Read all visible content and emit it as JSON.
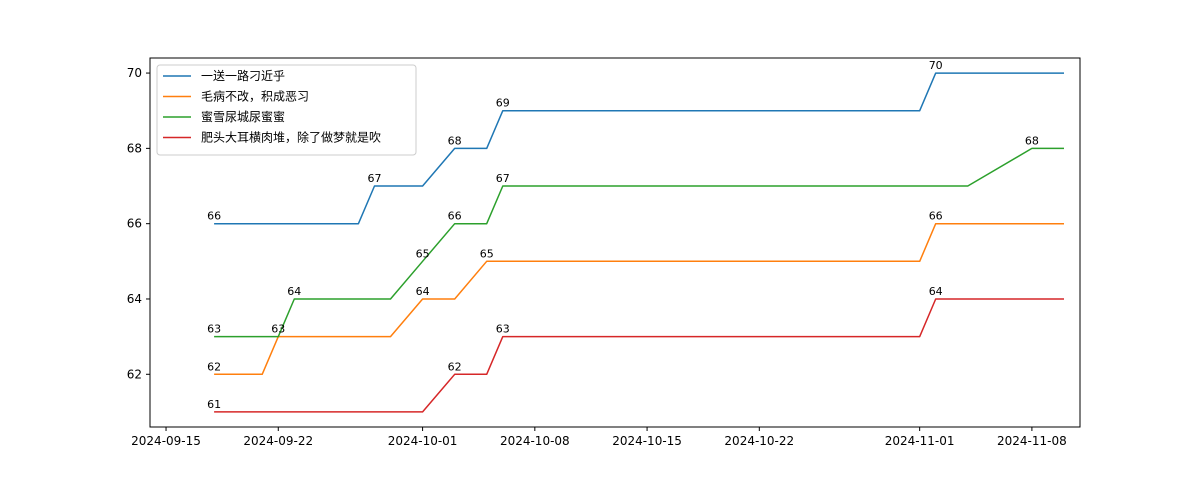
{
  "chart_data": {
    "type": "line",
    "title": "",
    "xlabel": "",
    "ylabel": "",
    "x_type": "date",
    "xlim": [
      "2024-09-14",
      "2024-11-11"
    ],
    "ylim": [
      60.6,
      70.4
    ],
    "x_ticks": [
      "2024-09-15",
      "2024-09-22",
      "2024-10-01",
      "2024-10-08",
      "2024-10-15",
      "2024-10-22",
      "2024-11-01",
      "2024-11-08"
    ],
    "y_ticks": [
      62,
      64,
      66,
      68,
      70
    ],
    "grid": false,
    "legend_position": "top-left",
    "series": [
      {
        "name": "一送一路刁近乎",
        "color": "#1f77b4",
        "x": [
          "2024-09-18",
          "2024-09-27",
          "2024-09-28",
          "2024-10-01",
          "2024-10-03",
          "2024-10-05",
          "2024-10-06",
          "2024-11-01",
          "2024-11-02",
          "2024-11-10"
        ],
        "y": [
          66,
          66,
          67,
          67,
          68,
          68,
          69,
          69,
          70,
          70
        ],
        "labels": [
          {
            "x": "2024-09-18",
            "y": 66,
            "text": "66"
          },
          {
            "x": "2024-09-28",
            "y": 67,
            "text": "67"
          },
          {
            "x": "2024-10-03",
            "y": 68,
            "text": "68"
          },
          {
            "x": "2024-10-06",
            "y": 69,
            "text": "69"
          },
          {
            "x": "2024-11-02",
            "y": 70,
            "text": "70"
          }
        ]
      },
      {
        "name": "毛病不改，积成恶习",
        "color": "#ff7f0e",
        "x": [
          "2024-09-18",
          "2024-09-21",
          "2024-09-22",
          "2024-09-29",
          "2024-10-01",
          "2024-10-03",
          "2024-10-05",
          "2024-11-01",
          "2024-11-02",
          "2024-11-10"
        ],
        "y": [
          62,
          62,
          63,
          63,
          64,
          64,
          65,
          65,
          66,
          66
        ],
        "labels": [
          {
            "x": "2024-09-18",
            "y": 62,
            "text": "62"
          },
          {
            "x": "2024-09-22",
            "y": 63,
            "text": "63"
          },
          {
            "x": "2024-10-01",
            "y": 64,
            "text": "64"
          },
          {
            "x": "2024-10-05",
            "y": 65,
            "text": "65"
          },
          {
            "x": "2024-11-02",
            "y": 66,
            "text": "66"
          }
        ]
      },
      {
        "name": "蜜雪尿城尿蜜蜜",
        "color": "#2ca02c",
        "x": [
          "2024-09-18",
          "2024-09-22",
          "2024-09-23",
          "2024-09-29",
          "2024-10-01",
          "2024-10-03",
          "2024-10-05",
          "2024-10-06",
          "2024-11-04",
          "2024-11-08",
          "2024-11-10"
        ],
        "y": [
          63,
          63,
          64,
          64,
          65,
          66,
          66,
          67,
          67,
          68,
          68
        ],
        "labels": [
          {
            "x": "2024-09-18",
            "y": 63,
            "text": "63"
          },
          {
            "x": "2024-09-23",
            "y": 64,
            "text": "64"
          },
          {
            "x": "2024-10-01",
            "y": 65,
            "text": "65"
          },
          {
            "x": "2024-10-03",
            "y": 66,
            "text": "66"
          },
          {
            "x": "2024-10-06",
            "y": 67,
            "text": "67"
          },
          {
            "x": "2024-11-08",
            "y": 68,
            "text": "68"
          }
        ]
      },
      {
        "name": "肥头大耳横肉堆，除了做梦就是吹",
        "color": "#d62728",
        "x": [
          "2024-09-18",
          "2024-10-01",
          "2024-10-03",
          "2024-10-05",
          "2024-10-06",
          "2024-11-01",
          "2024-11-02",
          "2024-11-10"
        ],
        "y": [
          61,
          61,
          62,
          62,
          63,
          63,
          64,
          64
        ],
        "labels": [
          {
            "x": "2024-09-18",
            "y": 61,
            "text": "61"
          },
          {
            "x": "2024-10-03",
            "y": 62,
            "text": "62"
          },
          {
            "x": "2024-10-06",
            "y": 63,
            "text": "63"
          },
          {
            "x": "2024-11-02",
            "y": 64,
            "text": "64"
          }
        ]
      }
    ]
  }
}
